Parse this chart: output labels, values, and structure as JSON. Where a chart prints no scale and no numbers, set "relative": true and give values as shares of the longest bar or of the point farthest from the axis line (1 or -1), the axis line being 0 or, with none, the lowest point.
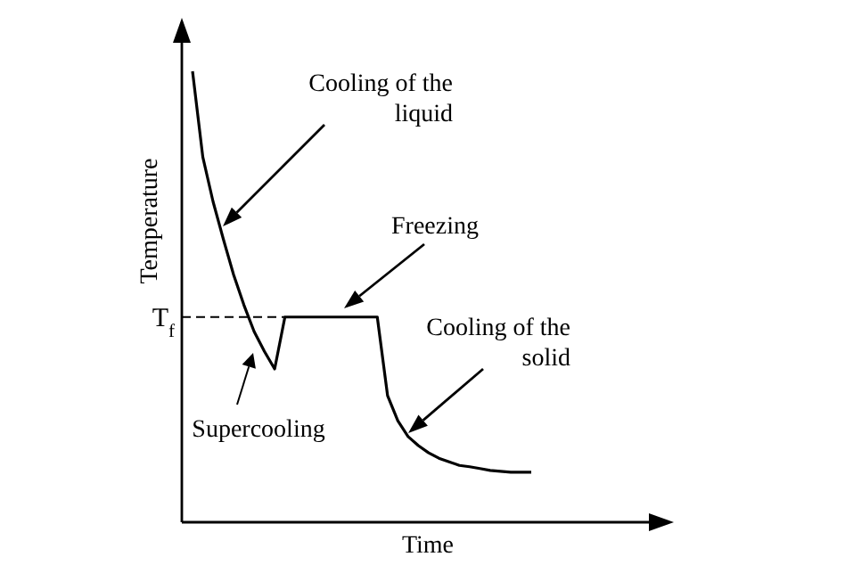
{
  "chart_data": {
    "type": "line",
    "relative": true,
    "xlabel": "Time",
    "ylabel": "Temperature",
    "marker": "none",
    "line_style": "solid",
    "categories": [
      null,
      null,
      null,
      null,
      null,
      null,
      null,
      null,
      null,
      null,
      null,
      null,
      null,
      null,
      null,
      null,
      null,
      null,
      null,
      null,
      null,
      null,
      null,
      null,
      null,
      null,
      null,
      null,
      null,
      null,
      null,
      null,
      null,
      null
    ],
    "series": [
      {
        "color": "#000000",
        "values": [
          1.0,
          0.81,
          0.711,
          0.628,
          0.549,
          0.482,
          0.423,
          0.379,
          0.34,
          0.455,
          0.455,
          0.455,
          0.455,
          0.455,
          0.455,
          0.455,
          0.455,
          0.455,
          0.455,
          0.281,
          0.225,
          0.19,
          0.17,
          0.154,
          0.142,
          0.134,
          0.126,
          0.123,
          0.119,
          0.115,
          0.113,
          0.111,
          0.111,
          0.111
        ]
      }
    ],
    "ref_lines": [
      {
        "axis": "y",
        "value": 0.455,
        "label": "T$_{f}$",
        "line_style": "dashed"
      }
    ],
    "annotations": [
      "Cooling of the\nliquid",
      "Freezing",
      "Supercooling",
      "Cooling of the\nsolid"
    ]
  }
}
